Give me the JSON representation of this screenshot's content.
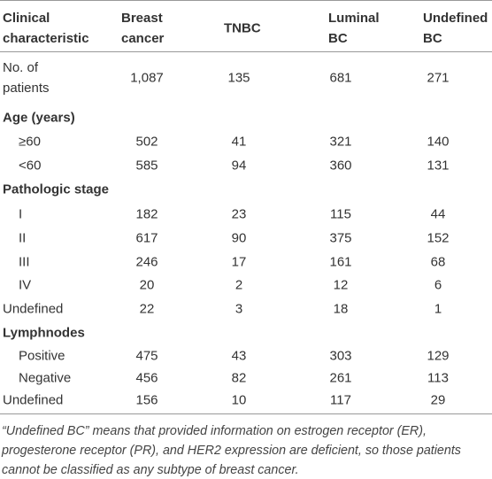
{
  "table": {
    "header": [
      "Clinical characteristic",
      "Breast cancer",
      "TNBC",
      "Luminal BC",
      "Undefined BC"
    ],
    "rows": [
      [
        "No. of patients",
        "1,087",
        "135",
        "681",
        "271"
      ],
      [
        "Age (years)"
      ],
      [
        "≥60",
        "502",
        "41",
        "321",
        "140"
      ],
      [
        "<60",
        "585",
        "94",
        "360",
        "131"
      ],
      [
        "Pathologic stage"
      ],
      [
        "I",
        "182",
        "23",
        "115",
        "44"
      ],
      [
        "II",
        "617",
        "90",
        "375",
        "152"
      ],
      [
        "III",
        "246",
        "17",
        "161",
        "68"
      ],
      [
        "IV",
        "20",
        "2",
        "12",
        "6"
      ],
      [
        "Undefined",
        "22",
        "3",
        "18",
        "1"
      ],
      [
        "Lymphnodes"
      ],
      [
        "Positive",
        "475",
        "43",
        "303",
        "129"
      ],
      [
        "Negative",
        "456",
        "82",
        "261",
        "113"
      ],
      [
        "Undefined",
        "156",
        "10",
        "117",
        "29"
      ]
    ]
  },
  "footnote": "“Undefined BC” means that provided information on estrogen receptor (ER), progesterone receptor (PR), and HER2 expression are deficient, so those patients cannot be classified as any subtype of breast cancer."
}
